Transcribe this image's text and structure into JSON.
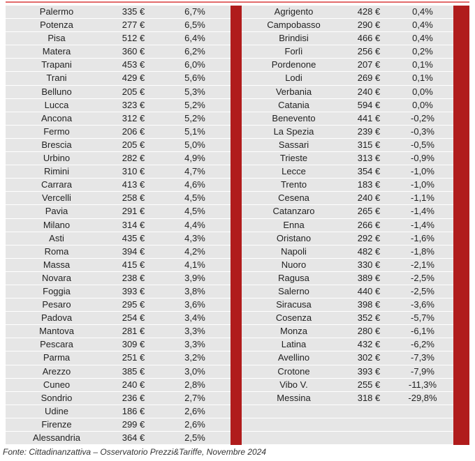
{
  "colors": {
    "accent_red": "#b01c1c",
    "row_bg": "#e6e6e6"
  },
  "left_table": [
    {
      "city": "Palermo",
      "price": "335 €",
      "pct": "6,7%"
    },
    {
      "city": "Potenza",
      "price": "277 €",
      "pct": "6,5%"
    },
    {
      "city": "Pisa",
      "price": "512 €",
      "pct": "6,4%"
    },
    {
      "city": "Matera",
      "price": "360 €",
      "pct": "6,2%"
    },
    {
      "city": "Trapani",
      "price": "453 €",
      "pct": "6,0%"
    },
    {
      "city": "Trani",
      "price": "429 €",
      "pct": "5,6%"
    },
    {
      "city": "Belluno",
      "price": "205 €",
      "pct": "5,3%"
    },
    {
      "city": "Lucca",
      "price": "323 €",
      "pct": "5,2%"
    },
    {
      "city": "Ancona",
      "price": "312 €",
      "pct": "5,2%"
    },
    {
      "city": "Fermo",
      "price": "206 €",
      "pct": "5,1%"
    },
    {
      "city": "Brescia",
      "price": "205 €",
      "pct": "5,0%"
    },
    {
      "city": "Urbino",
      "price": "282 €",
      "pct": "4,9%"
    },
    {
      "city": "Rimini",
      "price": "310 €",
      "pct": "4,7%"
    },
    {
      "city": "Carrara",
      "price": "413 €",
      "pct": "4,6%"
    },
    {
      "city": "Vercelli",
      "price": "258 €",
      "pct": "4,5%"
    },
    {
      "city": "Pavia",
      "price": "291 €",
      "pct": "4,5%"
    },
    {
      "city": "Milano",
      "price": "314 €",
      "pct": "4,4%"
    },
    {
      "city": "Asti",
      "price": "435 €",
      "pct": "4,3%"
    },
    {
      "city": "Roma",
      "price": "394 €",
      "pct": "4,2%"
    },
    {
      "city": "Massa",
      "price": "415 €",
      "pct": "4,1%"
    },
    {
      "city": "Novara",
      "price": "238 €",
      "pct": "3,9%"
    },
    {
      "city": "Foggia",
      "price": "393 €",
      "pct": "3,8%"
    },
    {
      "city": "Pesaro",
      "price": "295 €",
      "pct": "3,6%"
    },
    {
      "city": "Padova",
      "price": "254 €",
      "pct": "3,4%"
    },
    {
      "city": "Mantova",
      "price": "281 €",
      "pct": "3,3%"
    },
    {
      "city": "Pescara",
      "price": "309 €",
      "pct": "3,3%"
    },
    {
      "city": "Parma",
      "price": "251 €",
      "pct": "3,2%"
    },
    {
      "city": "Arezzo",
      "price": "385 €",
      "pct": "3,0%"
    },
    {
      "city": "Cuneo",
      "price": "240 €",
      "pct": "2,8%"
    },
    {
      "city": "Sondrio",
      "price": "236 €",
      "pct": "2,7%"
    },
    {
      "city": "Udine",
      "price": "186 €",
      "pct": "2,6%"
    },
    {
      "city": "Firenze",
      "price": "299 €",
      "pct": "2,6%"
    },
    {
      "city": "Alessandria",
      "price": "364 €",
      "pct": "2,5%"
    }
  ],
  "right_table": [
    {
      "city": "Agrigento",
      "price": "428 €",
      "pct": "0,4%"
    },
    {
      "city": "Campobasso",
      "price": "290 €",
      "pct": "0,4%"
    },
    {
      "city": "Brindisi",
      "price": "466 €",
      "pct": "0,4%"
    },
    {
      "city": "Forlì",
      "price": "256 €",
      "pct": "0,2%"
    },
    {
      "city": "Pordenone",
      "price": "207 €",
      "pct": "0,1%"
    },
    {
      "city": "Lodi",
      "price": "269 €",
      "pct": "0,1%"
    },
    {
      "city": "Verbania",
      "price": "240 €",
      "pct": "0,0%"
    },
    {
      "city": "Catania",
      "price": "594 €",
      "pct": "0,0%"
    },
    {
      "city": "Benevento",
      "price": "441 €",
      "pct": "-0,2%"
    },
    {
      "city": "La Spezia",
      "price": "239 €",
      "pct": "-0,3%"
    },
    {
      "city": "Sassari",
      "price": "315 €",
      "pct": "-0,5%"
    },
    {
      "city": "Trieste",
      "price": "313 €",
      "pct": "-0,9%"
    },
    {
      "city": "Lecce",
      "price": "354 €",
      "pct": "-1,0%"
    },
    {
      "city": "Trento",
      "price": "183 €",
      "pct": "-1,0%"
    },
    {
      "city": "Cesena",
      "price": "240 €",
      "pct": "-1,1%"
    },
    {
      "city": "Catanzaro",
      "price": "265 €",
      "pct": "-1,4%"
    },
    {
      "city": "Enna",
      "price": "266 €",
      "pct": "-1,4%"
    },
    {
      "city": "Oristano",
      "price": "292 €",
      "pct": "-1,6%"
    },
    {
      "city": "Napoli",
      "price": "482 €",
      "pct": "-1,8%"
    },
    {
      "city": "Nuoro",
      "price": "330 €",
      "pct": "-2,1%"
    },
    {
      "city": "Ragusa",
      "price": "389 €",
      "pct": "-2,5%"
    },
    {
      "city": "Salerno",
      "price": "440 €",
      "pct": "-2,5%"
    },
    {
      "city": "Siracusa",
      "price": "398 €",
      "pct": "-3,6%"
    },
    {
      "city": "Cosenza",
      "price": "352 €",
      "pct": "-5,7%"
    },
    {
      "city": "Monza",
      "price": "280 €",
      "pct": "-6,1%"
    },
    {
      "city": "Latina",
      "price": "432 €",
      "pct": "-6,2%"
    },
    {
      "city": "Avellino",
      "price": "302 €",
      "pct": "-7,3%"
    },
    {
      "city": "Crotone",
      "price": "393 €",
      "pct": "-7,9%"
    },
    {
      "city": "Vibo V.",
      "price": "255 €",
      "pct": "-11,3%"
    },
    {
      "city": "Messina",
      "price": "318 €",
      "pct": "-29,8%"
    },
    {
      "city": "",
      "price": "",
      "pct": ""
    },
    {
      "city": "",
      "price": "",
      "pct": ""
    },
    {
      "city": "",
      "price": "",
      "pct": ""
    }
  ],
  "source": "Fonte: Cittadinanzattiva – Osservatorio Prezzi&Tariffe, Novembre 2024"
}
